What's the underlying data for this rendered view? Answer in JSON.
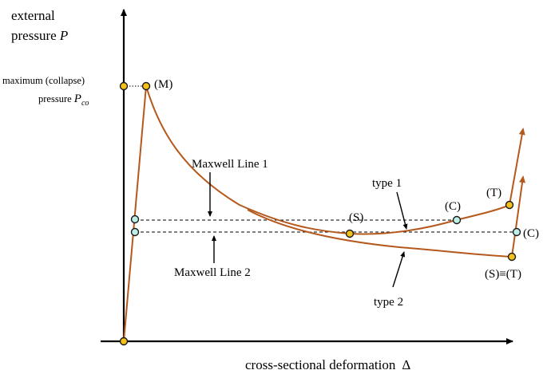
{
  "axes": {
    "y_label_line1": "external",
    "y_label_line2": "pressure ",
    "y_label_symbol": "P",
    "x_label": "cross-sectional deformation",
    "x_label_symbol": "Δ"
  },
  "collapse": {
    "line1": "maximum (collapse)",
    "line2": "pressure ",
    "symbol": "P",
    "subscript": "co"
  },
  "labels": {
    "M": "(M)",
    "maxwell1": "Maxwell Line 1",
    "maxwell2": "Maxwell Line 2",
    "type1": "type 1",
    "type2": "type 2",
    "S": "(S)",
    "C1": "(C)",
    "T": "(T)",
    "C2": "(C)",
    "ST": "(S)≡(T)"
  },
  "colors": {
    "curve": "#b5581c",
    "point_fill": "#f2c21a",
    "point_cyan": "#bfeee6"
  }
}
